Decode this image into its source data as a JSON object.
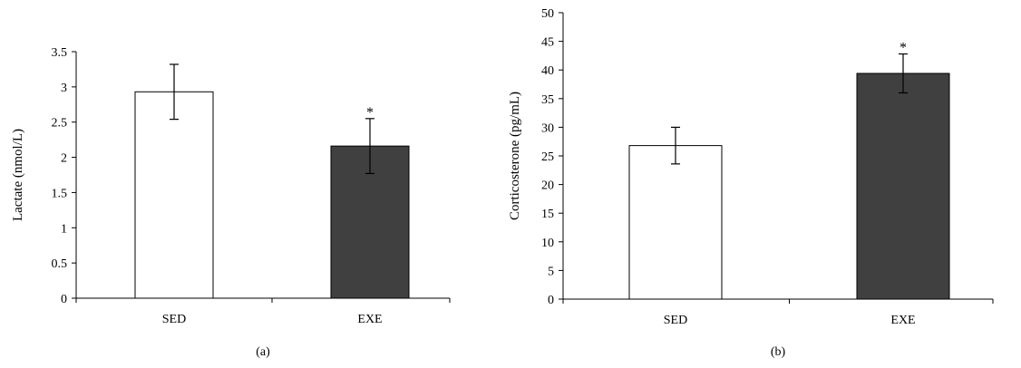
{
  "chart_data": [
    {
      "type": "bar",
      "panel_label": "(a)",
      "ylabel": "Lactate (nmol/L)",
      "xlabel": "",
      "categories": [
        "SED",
        "EXE"
      ],
      "values": [
        2.93,
        2.16
      ],
      "errors": [
        0.39,
        0.39
      ],
      "significance": [
        "",
        "*"
      ],
      "bar_colors": [
        "#ffffff",
        "#404040"
      ],
      "ylim": [
        0,
        3.5
      ],
      "yticks": [
        "0",
        "0.5",
        "1",
        "1.5",
        "2",
        "2.5",
        "3",
        "3.5"
      ],
      "ytick_values": [
        0,
        0.5,
        1,
        1.5,
        2,
        2.5,
        3,
        3.5
      ],
      "grid": false
    },
    {
      "type": "bar",
      "panel_label": "(b)",
      "ylabel": "Corticosterone (pg/mL)",
      "xlabel": "",
      "categories": [
        "SED",
        "EXE"
      ],
      "values": [
        26.8,
        39.4
      ],
      "errors": [
        3.2,
        3.4
      ],
      "significance": [
        "",
        "*"
      ],
      "bar_colors": [
        "#ffffff",
        "#404040"
      ],
      "ylim": [
        0,
        50
      ],
      "yticks": [
        "0",
        "5",
        "10",
        "15",
        "20",
        "25",
        "30",
        "35",
        "40",
        "45",
        "50"
      ],
      "ytick_values": [
        0,
        5,
        10,
        15,
        20,
        25,
        30,
        35,
        40,
        45,
        50
      ],
      "grid": false
    }
  ]
}
